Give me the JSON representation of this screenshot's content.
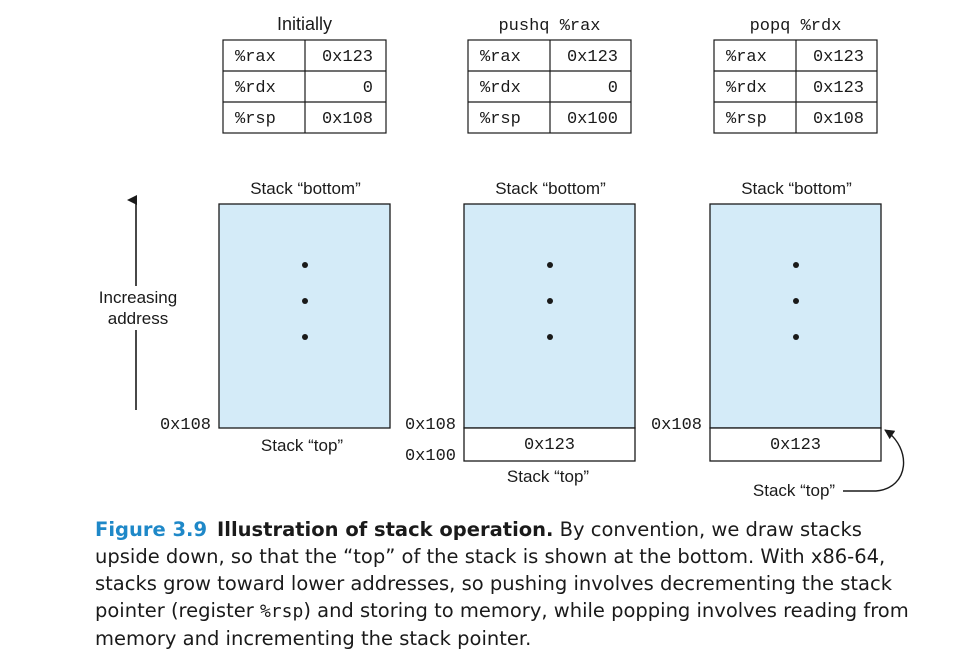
{
  "panels": [
    {
      "title": "Initially",
      "title_mono": false,
      "registers": [
        {
          "name": "%rax",
          "value": "0x123"
        },
        {
          "name": "%rdx",
          "value": "0"
        },
        {
          "name": "%rsp",
          "value": "0x108"
        }
      ],
      "stack_bottom_label": "Stack “bottom”",
      "address_labels": [
        "0x108"
      ],
      "stack_cells": [],
      "stack_top_label": "Stack “top”"
    },
    {
      "title": "pushq %rax",
      "title_mono": true,
      "registers": [
        {
          "name": "%rax",
          "value": "0x123"
        },
        {
          "name": "%rdx",
          "value": "0"
        },
        {
          "name": "%rsp",
          "value": "0x100"
        }
      ],
      "stack_bottom_label": "Stack “bottom”",
      "address_labels": [
        "0x108",
        "0x100"
      ],
      "stack_cells": [
        "0x123"
      ],
      "stack_top_label": "Stack “top”"
    },
    {
      "title": "popq %rdx",
      "title_mono": true,
      "registers": [
        {
          "name": "%rax",
          "value": "0x123"
        },
        {
          "name": "%rdx",
          "value": "0x123"
        },
        {
          "name": "%rsp",
          "value": "0x108"
        }
      ],
      "stack_bottom_label": "Stack “bottom”",
      "address_labels": [
        "0x108"
      ],
      "stack_cells": [
        "0x123"
      ],
      "stack_top_label": "Stack “top”"
    }
  ],
  "axis_label": [
    "Increasing",
    "address"
  ],
  "caption": {
    "label": "Figure 3.9",
    "title": "Illustration of stack operation.",
    "text_1": " By convention, we draw stacks upside down, so that the “top” of the stack is shown at the bottom. With x86-64, stacks grow toward lower addresses, so pushing involves decrementing the stack pointer (register ",
    "code": "%rsp",
    "text_2": ") and storing to memory, while popping involves reading from memory and incrementing the stack pointer."
  },
  "colors": {
    "stack_fill": "#d4ebf8",
    "stroke": "#1a1a1a",
    "caption_accent": "#1e88c8"
  }
}
